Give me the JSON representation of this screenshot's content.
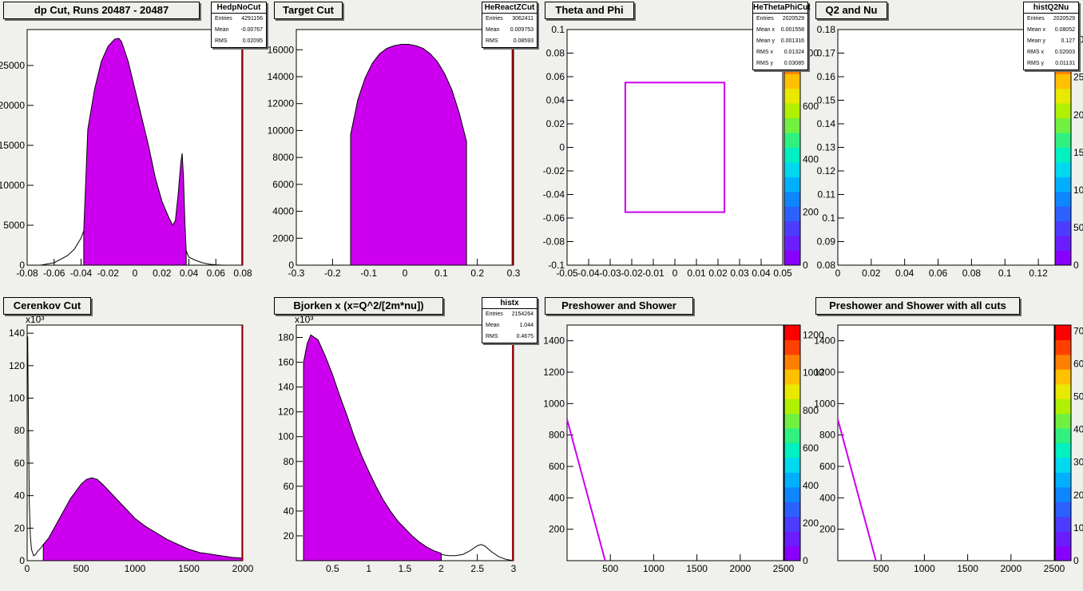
{
  "panels": [
    {
      "id": "p1",
      "title": "dp Cut, Runs 20487 - 20487",
      "stats": {
        "name": "HedpNoCut",
        "rows": [
          [
            "Entries",
            "4291156"
          ],
          [
            "Mean",
            "-0.00767"
          ],
          [
            "RMS",
            "0.02095"
          ]
        ]
      },
      "x_ticks": [
        "-0.08",
        "-0.06",
        "-0.04",
        "-0.02",
        "0",
        "0.02",
        "0.04",
        "0.06",
        "0.08"
      ],
      "y_ticks": [
        "0",
        "5000",
        "10000",
        "15000",
        "20000",
        "25000"
      ],
      "chart_data": {
        "type": "bar",
        "xlim": [
          -0.08,
          0.08
        ],
        "ylim": [
          0,
          29500
        ],
        "outline_x": [
          -0.08,
          -0.07,
          -0.06,
          -0.05,
          -0.045,
          -0.04,
          -0.038
        ],
        "outline_y": [
          0,
          0,
          300,
          1200,
          2000,
          3400,
          4300
        ],
        "fill_x": [
          -0.038,
          -0.035,
          -0.03,
          -0.025,
          -0.02,
          -0.015,
          -0.012,
          -0.01,
          -0.005,
          0,
          0.005,
          0.01,
          0.015,
          0.02,
          0.025,
          0.028,
          0.03,
          0.032,
          0.034,
          0.035,
          0.036,
          0.037,
          0.038
        ],
        "fill_y": [
          4300,
          17000,
          22000,
          25500,
          27400,
          28300,
          28400,
          28000,
          25500,
          22000,
          18500,
          15000,
          11000,
          8000,
          6000,
          5000,
          5600,
          8800,
          12800,
          14000,
          11000,
          5500,
          1800
        ],
        "tail_x": [
          0.038,
          0.04,
          0.045,
          0.05,
          0.055,
          0.06,
          0.065,
          0.07,
          0.08
        ],
        "tail_y": [
          1800,
          1000,
          600,
          300,
          120,
          40,
          0,
          0,
          0
        ],
        "cut_x": 0.0795,
        "fill_color": "#cc00ee"
      }
    },
    {
      "id": "p2",
      "title": "Target Cut",
      "stats": {
        "name": "HeReactZCut",
        "rows": [
          [
            "Entries",
            "3062411"
          ],
          [
            "Mean",
            "0.009753"
          ],
          [
            "RMS",
            "0.08593"
          ]
        ]
      },
      "x_ticks": [
        "-0.3",
        "-0.2",
        "-0.1",
        "0",
        "0.1",
        "0.2",
        "0.3"
      ],
      "y_ticks": [
        "0",
        "2000",
        "4000",
        "6000",
        "8000",
        "10000",
        "12000",
        "14000",
        "16000"
      ],
      "chart_data": {
        "type": "bar",
        "xlim": [
          -0.3,
          0.3
        ],
        "ylim": [
          0,
          17500
        ],
        "fill_x": [
          -0.15,
          -0.15,
          -0.13,
          -0.11,
          -0.09,
          -0.07,
          -0.05,
          -0.03,
          -0.01,
          0.01,
          0.03,
          0.05,
          0.07,
          0.09,
          0.11,
          0.13,
          0.15,
          0.17,
          0.17
        ],
        "fill_y": [
          0,
          9700,
          12300,
          13900,
          15000,
          15700,
          16100,
          16300,
          16400,
          16400,
          16300,
          16100,
          15700,
          15100,
          14200,
          13000,
          11300,
          9200,
          0
        ],
        "cut_x": 0.297,
        "fill_color": "#cc00ee"
      }
    },
    {
      "id": "p3",
      "title": "Theta and Phi",
      "stats": {
        "name": "HeThetaPhiCut",
        "rows": [
          [
            "Entries",
            "2020529"
          ],
          [
            "Mean x",
            "0.001558"
          ],
          [
            "Mean y",
            "0.001316"
          ],
          [
            "RMS x",
            "0.01324"
          ],
          [
            "RMS y",
            "0.03085"
          ]
        ]
      },
      "x_ticks": [
        "-0.05",
        "-0.04",
        "-0.03",
        "-0.02",
        "-0.01",
        "0",
        "0.01",
        "0.02",
        "0.03",
        "0.04",
        "0.05"
      ],
      "y_ticks": [
        "-0.1",
        "-0.08",
        "-0.06",
        "-0.04",
        "-0.02",
        "0",
        "0.02",
        "0.04",
        "0.06",
        "0.08",
        "0.1"
      ],
      "z_ticks": [
        "0",
        "200",
        "400",
        "600",
        "800"
      ],
      "chart_data": {
        "type": "heatmap",
        "xlim": [
          -0.05,
          0.05
        ],
        "ylim": [
          -0.1,
          0.1
        ],
        "region": {
          "x": [
            -0.023,
            0.023
          ],
          "y": [
            -0.055,
            0.055
          ]
        },
        "hot_spot": {
          "x": 0.012,
          "y": 0.02
        },
        "cut_color": "#cc00ee"
      }
    },
    {
      "id": "p4",
      "title": "Q2 and Nu",
      "stats": {
        "name": "histQ2Nu",
        "rows": [
          [
            "Entries",
            "2020529"
          ],
          [
            "Mean x",
            "0.08052"
          ],
          [
            "Mean y",
            "0.127"
          ],
          [
            "RMS x",
            "0.02003"
          ],
          [
            "RMS y",
            "0.01131"
          ]
        ]
      },
      "x_ticks": [
        "0",
        "0.02",
        "0.04",
        "0.06",
        "0.08",
        "0.1",
        "0.12"
      ],
      "y_ticks": [
        "0.08",
        "0.09",
        "0.1",
        "0.11",
        "0.12",
        "0.13",
        "0.14",
        "0.15",
        "0.16",
        "0.17",
        "0.18"
      ],
      "z_ticks": [
        "0",
        "50",
        "100",
        "150",
        "200",
        "250",
        "300"
      ],
      "chart_data": {
        "type": "heatmap",
        "xlim": [
          0,
          0.13
        ],
        "ylim": [
          0.08,
          0.18
        ],
        "region_quad": [
          [
            0.03,
            0.113
          ],
          [
            0.038,
            0.156
          ],
          [
            0.118,
            0.148
          ],
          [
            0.117,
            0.104
          ]
        ],
        "hot_spot": {
          "x": 0.078,
          "y": 0.119
        }
      }
    },
    {
      "id": "p5",
      "title": "Cerenkov Cut",
      "exponent": "x10³",
      "x_ticks": [
        "0",
        "500",
        "1000",
        "1500",
        "2000"
      ],
      "y_ticks": [
        "0",
        "20",
        "40",
        "60",
        "80",
        "100",
        "120",
        "140"
      ],
      "chart_data": {
        "type": "bar",
        "xlim": [
          0,
          2000
        ],
        "ylim": [
          0,
          145
        ],
        "outline_x": [
          5,
          10,
          20,
          30,
          40,
          60,
          80,
          100,
          130,
          150
        ],
        "outline_y": [
          138,
          95,
          35,
          15,
          7,
          3,
          4,
          6,
          8,
          10
        ],
        "fill_x": [
          150,
          200,
          300,
          400,
          500,
          550,
          600,
          650,
          700,
          800,
          900,
          1000,
          1100,
          1200,
          1300,
          1400,
          1500,
          1600,
          1700,
          1800,
          1900,
          2000
        ],
        "fill_y": [
          10,
          14,
          26,
          38,
          47,
          50,
          51,
          50,
          47,
          40,
          33,
          26,
          21,
          17,
          13,
          10,
          7,
          5,
          4,
          3,
          2,
          1.5
        ],
        "cut_x": 1995,
        "fill_color": "#cc00ee"
      }
    },
    {
      "id": "p6",
      "title": "Bjorken x  (x=Q^2/[2m*nu])",
      "exponent": "x10³",
      "stats": {
        "name": "histx",
        "rows": [
          [
            "Entries",
            "2154264"
          ],
          [
            "Mean",
            "1.044"
          ],
          [
            "RMS",
            "0.4675"
          ]
        ]
      },
      "x_ticks": [
        "0.5",
        "1",
        "1.5",
        "2",
        "2.5",
        "3"
      ],
      "y_ticks": [
        "20",
        "40",
        "60",
        "80",
        "100",
        "120",
        "140",
        "160",
        "180"
      ],
      "chart_data": {
        "type": "bar",
        "xlim": [
          0,
          3
        ],
        "ylim": [
          0,
          190
        ],
        "fill_x": [
          0.1,
          0.15,
          0.2,
          0.3,
          0.4,
          0.5,
          0.6,
          0.7,
          0.8,
          0.9,
          1.0,
          1.1,
          1.2,
          1.3,
          1.4,
          1.5,
          1.6,
          1.7,
          1.8,
          1.9,
          2.0
        ],
        "fill_y": [
          160,
          175,
          182,
          178,
          165,
          150,
          133,
          117,
          100,
          85,
          72,
          60,
          49,
          40,
          32,
          26,
          20,
          15,
          11,
          8,
          6
        ],
        "tail_x": [
          2.0,
          2.1,
          2.2,
          2.3,
          2.4,
          2.5,
          2.55,
          2.6,
          2.7,
          2.8,
          2.9,
          3.0
        ],
        "tail_y": [
          5,
          4,
          4,
          5,
          8,
          12,
          13,
          12,
          7,
          3,
          1,
          0
        ],
        "cut_x": 2.99,
        "fill_color": "#cc00ee"
      }
    },
    {
      "id": "p7",
      "title": "Preshower and Shower",
      "x_ticks": [
        "500",
        "1000",
        "1500",
        "2000",
        "2500"
      ],
      "y_ticks": [
        "200",
        "400",
        "600",
        "800",
        "1000",
        "1200",
        "1400"
      ],
      "z_ticks": [
        "0",
        "200",
        "400",
        "600",
        "800",
        "1000",
        "1200"
      ],
      "chart_data": {
        "type": "heatmap",
        "xlim": [
          0,
          2500
        ],
        "ylim": [
          0,
          1500
        ],
        "hot_spot": {
          "x": 420,
          "y": 700
        },
        "cut_line": [
          [
            0,
            900
          ],
          [
            440,
            0
          ]
        ],
        "cut_color": "#cc00ee"
      }
    },
    {
      "id": "p8",
      "title": "Preshower and Shower with all cuts",
      "x_ticks": [
        "500",
        "1000",
        "1500",
        "2000",
        "2500"
      ],
      "y_ticks": [
        "200",
        "400",
        "600",
        "800",
        "1000",
        "1200",
        "1400"
      ],
      "z_ticks": [
        "0",
        "100",
        "200",
        "300",
        "400",
        "500",
        "600",
        "700"
      ],
      "chart_data": {
        "type": "heatmap",
        "xlim": [
          0,
          2500
        ],
        "ylim": [
          0,
          1500
        ],
        "hot_spot": {
          "x": 420,
          "y": 700
        },
        "cut_line": [
          [
            0,
            900
          ],
          [
            440,
            0
          ]
        ],
        "cut_color": "#cc00ee"
      }
    }
  ]
}
